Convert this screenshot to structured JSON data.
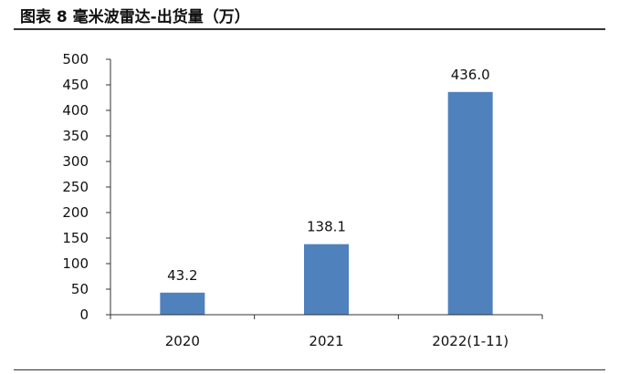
{
  "figure_title": "图表 8 毫米波雷达-出货量（万）",
  "colors": {
    "bar": "#4f81bd",
    "axis": "#333333",
    "rule": "#333333"
  },
  "chart_data": {
    "type": "bar",
    "title": "",
    "xlabel": "",
    "ylabel": "",
    "categories": [
      "2020",
      "2021",
      "2022(1-11)"
    ],
    "values": [
      43.2,
      138.1,
      436.0
    ],
    "value_labels": [
      "43.2",
      "138.1",
      "436.0"
    ],
    "ylim": [
      0,
      500
    ],
    "yticks": [
      0,
      50,
      100,
      150,
      200,
      250,
      300,
      350,
      400,
      450,
      500
    ],
    "grid": false,
    "legend": "none"
  }
}
